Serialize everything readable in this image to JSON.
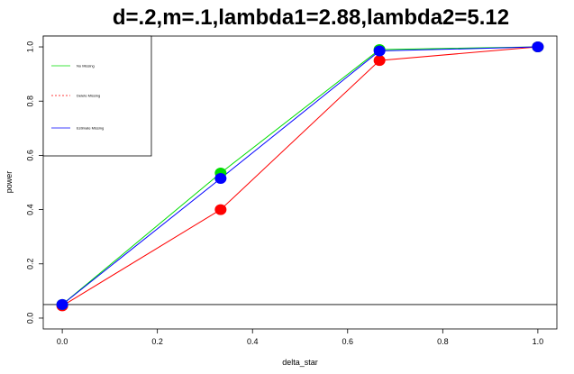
{
  "chart_data": {
    "type": "line",
    "title": "d=.2,m=.1,lambda1=2.88,lambda2=5.12",
    "xlabel": "delta_star",
    "ylabel": "power",
    "xlim": [
      -0.04,
      1.04
    ],
    "ylim": [
      -0.04,
      1.04
    ],
    "x_ticks": [
      0.0,
      0.2,
      0.4,
      0.6,
      0.8,
      1.0
    ],
    "x_tick_labels": [
      "0.0",
      "0.2",
      "0.4",
      "0.6",
      "0.8",
      "1.0"
    ],
    "y_ticks": [
      0.0,
      0.2,
      0.4,
      0.6,
      0.8,
      1.0
    ],
    "y_tick_labels": [
      "0.0",
      "0.2",
      "0.4",
      "0.6",
      "0.8",
      "1.0"
    ],
    "grid": false,
    "legend_position": "top-left",
    "reference_line_y": 0.05,
    "x": [
      0.0,
      0.333,
      0.667,
      1.0
    ],
    "series": [
      {
        "name": "No Missing",
        "values": [
          0.05,
          0.535,
          0.99,
          1.0
        ],
        "color": "#00dd00",
        "line_style": "solid"
      },
      {
        "name": "Delete Missing",
        "values": [
          0.045,
          0.4,
          0.95,
          1.0
        ],
        "color": "#ff0000",
        "line_style": "dashed"
      },
      {
        "name": "Estimate Missing",
        "values": [
          0.05,
          0.515,
          0.985,
          1.0
        ],
        "color": "#0000ff",
        "line_style": "solid"
      }
    ]
  }
}
